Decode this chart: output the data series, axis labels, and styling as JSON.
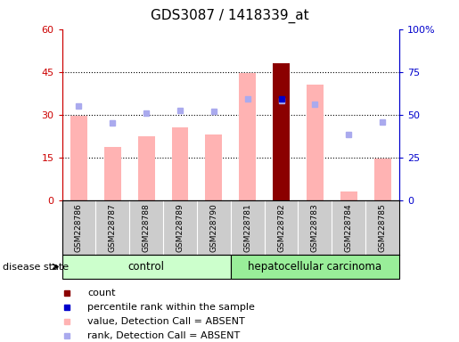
{
  "title": "GDS3087 / 1418339_at",
  "samples": [
    "GSM228786",
    "GSM228787",
    "GSM228788",
    "GSM228789",
    "GSM228790",
    "GSM228781",
    "GSM228782",
    "GSM228783",
    "GSM228784",
    "GSM228785"
  ],
  "groups": [
    "control",
    "control",
    "control",
    "control",
    "control",
    "hepatocellular carcinoma",
    "hepatocellular carcinoma",
    "hepatocellular carcinoma",
    "hepatocellular carcinoma",
    "hepatocellular carcinoma"
  ],
  "bar_values_pink": [
    29.5,
    18.5,
    22.5,
    25.5,
    23.0,
    44.5,
    33.0,
    40.5,
    3.0,
    14.5
  ],
  "bar_values_red": [
    0,
    0,
    0,
    0,
    0,
    0,
    48.0,
    0,
    0,
    0
  ],
  "rank_dots_blue_absent": [
    33.0,
    27.0,
    30.5,
    31.5,
    31.0,
    35.5,
    35.0,
    33.5,
    23.0,
    27.5
  ],
  "rank_dots_blue_present": [
    0,
    0,
    0,
    0,
    0,
    0,
    35.5,
    0,
    0,
    0
  ],
  "ylim_left": [
    0,
    60
  ],
  "ylim_right": [
    0,
    100
  ],
  "yticks_left": [
    0,
    15,
    30,
    45,
    60
  ],
  "yticks_right": [
    0,
    25,
    50,
    75,
    100
  ],
  "ytick_labels_right": [
    "0",
    "25",
    "50",
    "75",
    "100%"
  ],
  "ytick_labels_left": [
    "0",
    "15",
    "30",
    "45",
    "60"
  ],
  "bar_width": 0.5,
  "color_pink": "#FFB3B3",
  "color_red": "#8B0000",
  "color_blue_dark": "#0000CC",
  "color_blue_light": "#AAAAEE",
  "color_control_bg": "#CCFFCC",
  "color_carcinoma_bg": "#99EE99",
  "color_label_area": "#CCCCCC",
  "left_axis_color": "#CC0000",
  "right_axis_color": "#0000CC",
  "disease_state_text": "disease state",
  "control_label": "control",
  "carcinoma_label": "hepatocellular carcinoma",
  "legend_items": [
    "count",
    "percentile rank within the sample",
    "value, Detection Call = ABSENT",
    "rank, Detection Call = ABSENT"
  ],
  "legend_colors": [
    "#8B0000",
    "#0000CC",
    "#FFB3B3",
    "#AAAAEE"
  ]
}
